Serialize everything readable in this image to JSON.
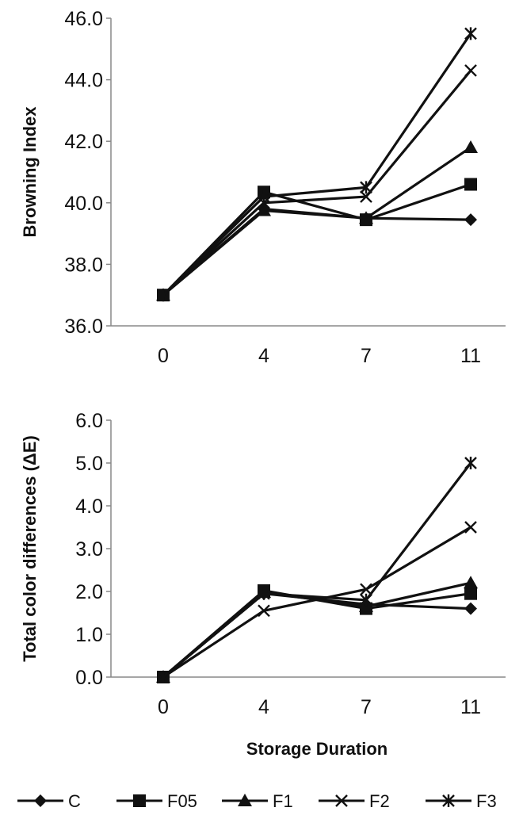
{
  "chart_data": [
    {
      "type": "line",
      "title": "",
      "xlabel": "",
      "ylabel": "Browning Index",
      "x": [
        "0",
        "4",
        "7",
        "11"
      ],
      "ylim": [
        36.0,
        46.0
      ],
      "yticks": [
        "36.0",
        "38.0",
        "40.0",
        "42.0",
        "44.0",
        "46.0"
      ],
      "grid": false,
      "series": [
        {
          "name": "C",
          "marker": "diamond",
          "values": [
            37.0,
            39.8,
            39.5,
            39.45
          ]
        },
        {
          "name": "F05",
          "marker": "square",
          "values": [
            37.0,
            40.35,
            39.45,
            40.6
          ]
        },
        {
          "name": "F1",
          "marker": "triangle",
          "values": [
            37.0,
            39.75,
            39.5,
            41.8
          ]
        },
        {
          "name": "F2",
          "marker": "x",
          "values": [
            37.0,
            40.0,
            40.2,
            44.3
          ]
        },
        {
          "name": "F3",
          "marker": "star",
          "values": [
            37.0,
            40.2,
            40.5,
            45.5
          ]
        }
      ]
    },
    {
      "type": "line",
      "title": "",
      "xlabel": "Storage Duration",
      "ylabel": "Total color differences (ΔE)",
      "x": [
        "0",
        "4",
        "7",
        "11"
      ],
      "ylim": [
        0.0,
        6.0
      ],
      "yticks": [
        "0.0",
        "1.0",
        "2.0",
        "3.0",
        "4.0",
        "5.0",
        "6.0"
      ],
      "grid": false,
      "series": [
        {
          "name": "C",
          "marker": "diamond",
          "values": [
            0.0,
            1.95,
            1.7,
            1.6
          ]
        },
        {
          "name": "F05",
          "marker": "square",
          "values": [
            0.0,
            2.02,
            1.6,
            1.95
          ]
        },
        {
          "name": "F1",
          "marker": "triangle",
          "values": [
            0.0,
            1.98,
            1.65,
            2.2
          ]
        },
        {
          "name": "F2",
          "marker": "x",
          "values": [
            0.0,
            1.55,
            2.05,
            3.5
          ]
        },
        {
          "name": "F3",
          "marker": "star",
          "values": [
            0.0,
            1.95,
            1.8,
            5.0
          ]
        }
      ]
    }
  ],
  "legend": {
    "placement": "bottom",
    "items": [
      {
        "label": "C",
        "marker": "diamond"
      },
      {
        "label": "F05",
        "marker": "square"
      },
      {
        "label": "F1",
        "marker": "triangle"
      },
      {
        "label": "F2",
        "marker": "x"
      },
      {
        "label": "F3",
        "marker": "star"
      }
    ]
  },
  "colors": {
    "series": "#111111",
    "axis": "#888888",
    "background": "#ffffff"
  }
}
